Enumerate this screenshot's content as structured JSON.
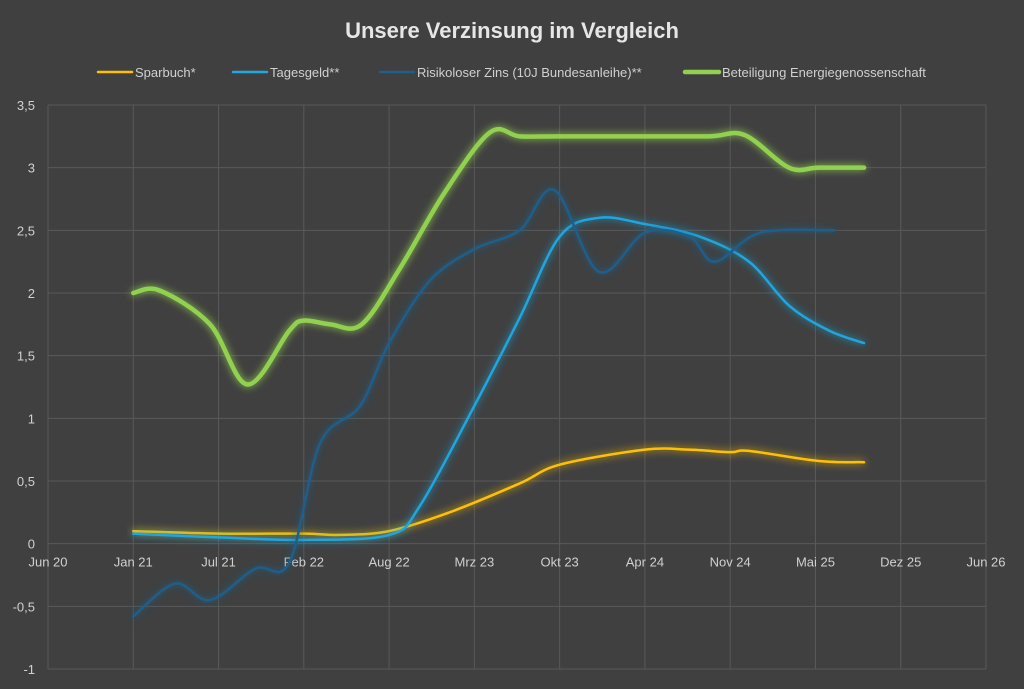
{
  "chart_data": {
    "type": "line",
    "title": "Unsere Verzinsung im Vergleich",
    "xlabel": "",
    "ylabel": "",
    "x_ticks": [
      "Jun 20",
      "Jan 21",
      "Jul 21",
      "Feb 22",
      "Aug 22",
      "Mrz 23",
      "Okt 23",
      "Apr 24",
      "Nov 24",
      "Mai 25",
      "Dez 25",
      "Jun 26"
    ],
    "y_ticks": [
      "-1",
      "-0,5",
      "0",
      "0,5",
      "1",
      "1,5",
      "2",
      "2,5",
      "3",
      "3,5"
    ],
    "ylim": [
      -1,
      3.5
    ],
    "x_unit": "tick index (0 = Jun 20, 11 = Jun 26)",
    "grid": true,
    "legend_position": "top",
    "series": [
      {
        "name": "Sparbuch*",
        "color": "#FFC000",
        "width": 2.5,
        "x": [
          1,
          2,
          3,
          3.42,
          4,
          4.71,
          5.53,
          6,
          7,
          7.52,
          8,
          8.22,
          9.04,
          9.57
        ],
        "y": [
          0.1,
          0.08,
          0.08,
          0.07,
          0.1,
          0.25,
          0.48,
          0.63,
          0.75,
          0.75,
          0.73,
          0.74,
          0.66,
          0.65
        ]
      },
      {
        "name": "Tagesgeld**",
        "color": "#1FA7E0",
        "width": 2.5,
        "x": [
          1,
          2,
          3,
          4,
          4.36,
          5,
          5.53,
          6,
          6.46,
          7,
          7.64,
          8.22,
          8.69,
          9.16,
          9.57
        ],
        "y": [
          0.08,
          0.05,
          0.03,
          0.07,
          0.3,
          1.1,
          1.8,
          2.45,
          2.6,
          2.55,
          2.45,
          2.25,
          1.9,
          1.7,
          1.6
        ]
      },
      {
        "name": "Risikoloser Zins (10J Bundesanleihe)**",
        "color": "#1F5F8B",
        "width": 2.5,
        "x": [
          1,
          1.49,
          1.9,
          2.43,
          2.83,
          3.19,
          3.66,
          4,
          4.48,
          5,
          5.53,
          5.94,
          6.46,
          7,
          7.52,
          7.82,
          8.35,
          9.22
        ],
        "y": [
          -0.58,
          -0.32,
          -0.45,
          -0.2,
          -0.15,
          0.8,
          1.1,
          1.6,
          2.1,
          2.35,
          2.5,
          2.82,
          2.17,
          2.48,
          2.45,
          2.25,
          2.48,
          2.5
        ]
      },
      {
        "name": "Beteiligung Energiegenossenschaft",
        "color": "#92D050",
        "width": 4.5,
        "x": [
          1,
          1.31,
          1.9,
          2.34,
          2.83,
          3,
          3.31,
          3.68,
          4.13,
          4.65,
          5.18,
          5.53,
          6,
          7,
          7.76,
          8.17,
          8.69,
          9.04,
          9.57
        ],
        "y": [
          2.0,
          2.02,
          1.75,
          1.27,
          1.7,
          1.78,
          1.75,
          1.75,
          2.2,
          2.8,
          3.28,
          3.25,
          3.25,
          3.25,
          3.25,
          3.26,
          3.0,
          3.0,
          3.0
        ]
      }
    ]
  }
}
